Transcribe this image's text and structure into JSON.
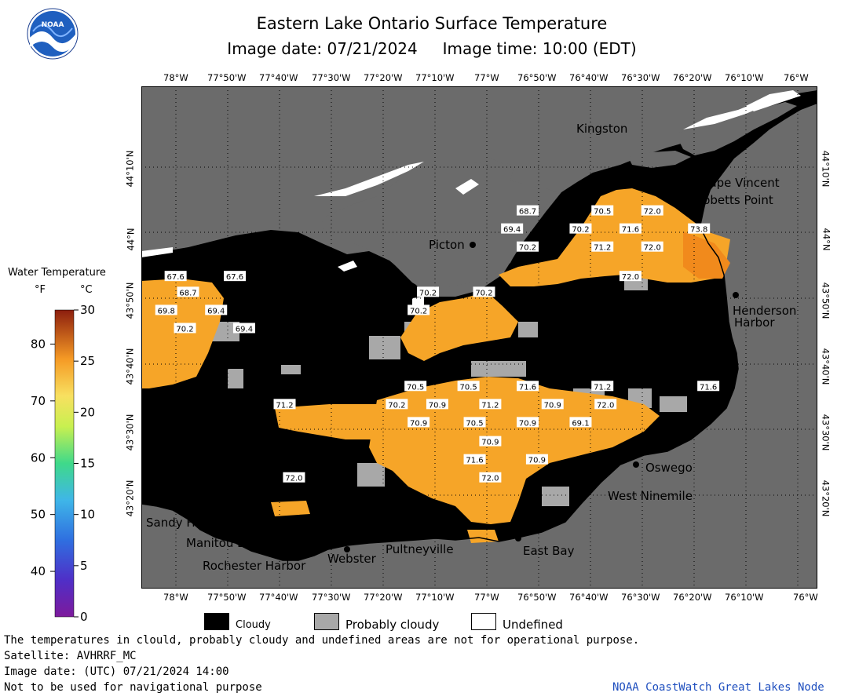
{
  "header": {
    "title": "Eastern Lake Ontario Surface Temperature",
    "image_date": "Image date: 07/21/2024",
    "image_time": "Image time: 10:00 (EDT)"
  },
  "colors": {
    "land": "#6b6b6b",
    "cloud": "#000000",
    "probably_cloudy": "#a8a8a8",
    "undefined": "#ffffff",
    "water_warm": "#f6a528",
    "water_hot": "#f18a1c"
  },
  "longitude_ticks_top": [
    "78°W",
    "77°50'W",
    "77°40'W",
    "77°30'W",
    "77°20'W",
    "77°10'W",
    "77°W",
    "76°50'W",
    "76°40'W",
    "76°30'W",
    "76°20'W",
    "76°10'W",
    "76°W"
  ],
  "longitude_ticks_bottom": [
    "78°W",
    "77°50'W",
    "77°40'W",
    "77°30'W",
    "77°20'W",
    "77°10'W",
    "77°W",
    "76°50'W",
    "76°40'W",
    "76°30'W",
    "76°20'W",
    "76°10'W",
    "76°W"
  ],
  "latitude_ticks": [
    "44°10'N",
    "44°N",
    "43°50'N",
    "43°40'N",
    "43°30'N",
    "43°20'N"
  ],
  "places": {
    "kingston": "Kingston",
    "cape_vincent": "Cape Vincent",
    "tibbetts_point": "Tibbetts Point",
    "picton": "Picton",
    "henderson_harbor_1": "Henderson",
    "henderson_harbor_2": "Harbor",
    "oswego": "Oswego",
    "west_ninemile": "West Ninemile",
    "sandy_harbour": "Sandy Harbour",
    "manitou_beach": "Manitou Beach",
    "rochester_harbor": "Rochester Harbor",
    "webster": "Webster",
    "pultneyville": "Pultneyville",
    "east_bay": "East Bay"
  },
  "temperature_labels": [
    {
      "value": "68.7",
      "lon": -76.88,
      "lat": 44.035
    },
    {
      "value": "70.5",
      "lon": -76.64,
      "lat": 44.035
    },
    {
      "value": "72.0",
      "lon": -76.48,
      "lat": 44.035
    },
    {
      "value": "69.4",
      "lon": -76.93,
      "lat": 43.995
    },
    {
      "value": "70.2",
      "lon": -76.71,
      "lat": 43.995
    },
    {
      "value": "71.6",
      "lon": -76.55,
      "lat": 43.995
    },
    {
      "value": "73.8",
      "lon": -76.33,
      "lat": 43.995
    },
    {
      "value": "70.2",
      "lon": -76.88,
      "lat": 43.955
    },
    {
      "value": "71.2",
      "lon": -76.64,
      "lat": 43.955
    },
    {
      "value": "72.0",
      "lon": -76.48,
      "lat": 43.955
    },
    {
      "value": "72.0",
      "lon": -76.55,
      "lat": 43.89
    },
    {
      "value": "67.6",
      "lon": -78.01,
      "lat": 43.89
    },
    {
      "value": "67.6",
      "lon": -77.82,
      "lat": 43.89
    },
    {
      "value": "68.7",
      "lon": -77.97,
      "lat": 43.855
    },
    {
      "value": "70.2",
      "lon": -77.2,
      "lat": 43.855
    },
    {
      "value": "70.2",
      "lon": -77.02,
      "lat": 43.855
    },
    {
      "value": "69.8",
      "lon": -78.04,
      "lat": 43.815
    },
    {
      "value": "69.4",
      "lon": -77.88,
      "lat": 43.815
    },
    {
      "value": "70.2",
      "lon": -77.23,
      "lat": 43.815
    },
    {
      "value": "70.2",
      "lon": -77.98,
      "lat": 43.775
    },
    {
      "value": "69.4",
      "lon": -77.79,
      "lat": 43.775
    },
    {
      "value": "70.5",
      "lon": -77.24,
      "lat": 43.647
    },
    {
      "value": "70.5",
      "lon": -77.07,
      "lat": 43.647
    },
    {
      "value": "71.6",
      "lon": -76.88,
      "lat": 43.647
    },
    {
      "value": "71.2",
      "lon": -76.64,
      "lat": 43.647
    },
    {
      "value": "71.6",
      "lon": -76.3,
      "lat": 43.647
    },
    {
      "value": "71.2",
      "lon": -77.66,
      "lat": 43.607
    },
    {
      "value": "70.2",
      "lon": -77.3,
      "lat": 43.607
    },
    {
      "value": "70.9",
      "lon": -77.17,
      "lat": 43.607
    },
    {
      "value": "71.2",
      "lon": -77.0,
      "lat": 43.607
    },
    {
      "value": "70.9",
      "lon": -76.8,
      "lat": 43.607
    },
    {
      "value": "72.0",
      "lon": -76.63,
      "lat": 43.607
    },
    {
      "value": "70.9",
      "lon": -77.23,
      "lat": 43.567
    },
    {
      "value": "70.5",
      "lon": -77.05,
      "lat": 43.567
    },
    {
      "value": "70.9",
      "lon": -76.88,
      "lat": 43.567
    },
    {
      "value": "69.1",
      "lon": -76.71,
      "lat": 43.567
    },
    {
      "value": "70.9",
      "lon": -77.0,
      "lat": 43.525
    },
    {
      "value": "71.6",
      "lon": -77.05,
      "lat": 43.485
    },
    {
      "value": "70.9",
      "lon": -76.85,
      "lat": 43.485
    },
    {
      "value": "72.0",
      "lon": -77.0,
      "lat": 43.445
    },
    {
      "value": "72.0",
      "lon": -77.63,
      "lat": 43.445
    }
  ],
  "color_bar": {
    "title": "Water Temperature",
    "unit_f": "°F",
    "unit_c": "°C",
    "f_ticks": [
      "40",
      "50",
      "60",
      "70",
      "80"
    ],
    "c_ticks": [
      "0",
      "5",
      "10",
      "15",
      "20",
      "25",
      "30"
    ],
    "f_range": [
      32,
      86
    ],
    "c_range": [
      0,
      30
    ]
  },
  "legend": {
    "cloudy": "Cloudy",
    "probably_cloudy": "Probably cloudy",
    "undefined": "Undefined"
  },
  "footer": {
    "disclaimer": "The temperatures in clould, probably cloudy and undefined areas are not for operational purpose.",
    "satellite": "Satellite: AVHRRF_MC",
    "utc_date": "Image date: (UTC) 07/21/2024  14:00",
    "nav_warning": "Not to be used for navigational purpose",
    "credit": "NOAA CoastWatch Great Lakes Node"
  }
}
